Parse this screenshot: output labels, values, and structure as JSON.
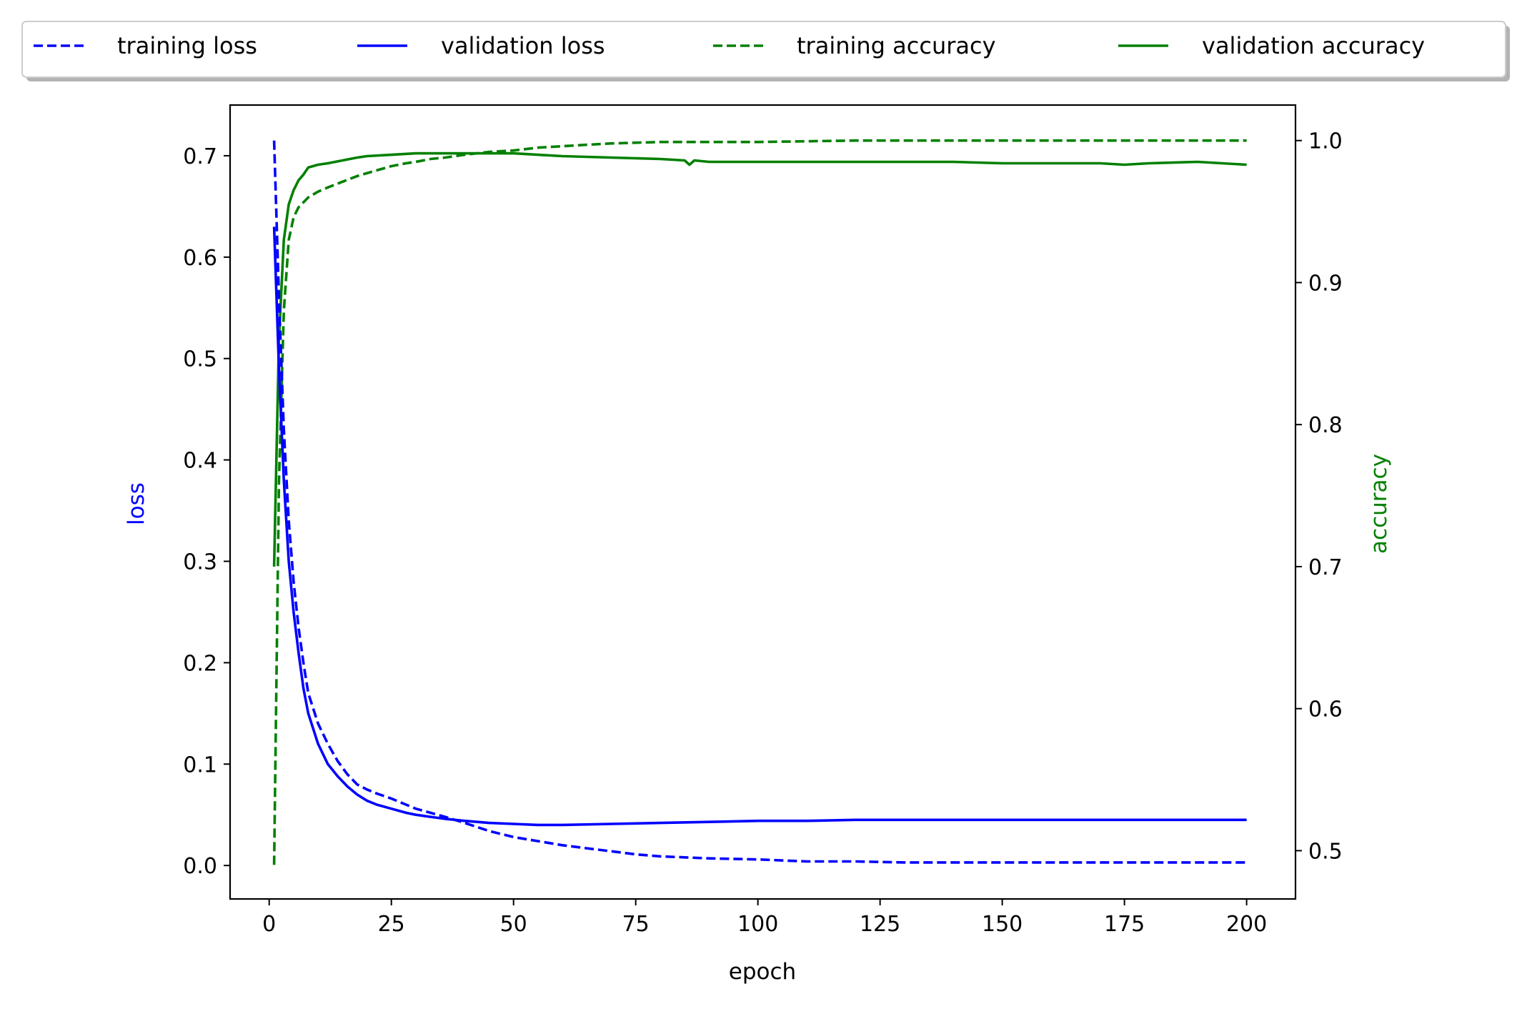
{
  "chart_data": {
    "type": "line",
    "xlabel": "epoch",
    "ylabel": "loss",
    "y2label": "accuracy",
    "xlim": [
      -8,
      210
    ],
    "ylim": [
      -0.033,
      0.75
    ],
    "y2lim": [
      0.466,
      1.025
    ],
    "xticks": [
      0,
      25,
      50,
      75,
      100,
      125,
      150,
      175,
      200
    ],
    "yticks": [
      0.0,
      0.1,
      0.2,
      0.3,
      0.4,
      0.5,
      0.6,
      0.7
    ],
    "y2ticks": [
      0.5,
      0.6,
      0.7,
      0.8,
      0.9,
      1.0
    ],
    "legend_position": "top, outside, single row",
    "ylabel_color": "#0000ff",
    "y2label_color": "#008000",
    "series": [
      {
        "name": "training loss",
        "axis": "left",
        "color": "#0000ff",
        "style": "dashed",
        "x": [
          1,
          2,
          3,
          4,
          5,
          6,
          7,
          8,
          10,
          12,
          14,
          16,
          18,
          20,
          22,
          25,
          28,
          30,
          33,
          36,
          40,
          45,
          50,
          55,
          60,
          65,
          70,
          75,
          80,
          85,
          90,
          100,
          110,
          120,
          130,
          140,
          150,
          160,
          170,
          180,
          190,
          200
        ],
        "y": [
          0.715,
          0.56,
          0.43,
          0.34,
          0.28,
          0.235,
          0.2,
          0.17,
          0.14,
          0.12,
          0.103,
          0.09,
          0.08,
          0.075,
          0.071,
          0.066,
          0.06,
          0.056,
          0.052,
          0.048,
          0.042,
          0.034,
          0.028,
          0.024,
          0.02,
          0.017,
          0.014,
          0.011,
          0.009,
          0.008,
          0.007,
          0.006,
          0.004,
          0.004,
          0.003,
          0.003,
          0.003,
          0.003,
          0.003,
          0.003,
          0.003,
          0.003
        ]
      },
      {
        "name": "validation loss",
        "axis": "left",
        "color": "#0000ff",
        "style": "solid",
        "x": [
          1,
          2,
          3,
          4,
          5,
          6,
          7,
          8,
          10,
          12,
          14,
          16,
          18,
          20,
          22,
          25,
          28,
          30,
          33,
          36,
          40,
          45,
          50,
          55,
          60,
          70,
          80,
          90,
          100,
          110,
          120,
          130,
          140,
          150,
          160,
          170,
          180,
          190,
          200
        ],
        "y": [
          0.63,
          0.49,
          0.38,
          0.3,
          0.25,
          0.21,
          0.175,
          0.15,
          0.12,
          0.1,
          0.088,
          0.078,
          0.07,
          0.064,
          0.06,
          0.056,
          0.052,
          0.05,
          0.048,
          0.046,
          0.044,
          0.042,
          0.041,
          0.04,
          0.04,
          0.041,
          0.042,
          0.043,
          0.044,
          0.044,
          0.045,
          0.045,
          0.045,
          0.045,
          0.045,
          0.045,
          0.045,
          0.045,
          0.045
        ]
      },
      {
        "name": "training accuracy",
        "axis": "right",
        "color": "#008000",
        "style": "dashed",
        "x": [
          1,
          2,
          3,
          4,
          5,
          6,
          8,
          10,
          12,
          15,
          18,
          20,
          22,
          25,
          28,
          30,
          33,
          36,
          40,
          45,
          50,
          55,
          60,
          65,
          70,
          80,
          90,
          100,
          120,
          140,
          160,
          180,
          200
        ],
        "y": [
          0.49,
          0.76,
          0.88,
          0.93,
          0.946,
          0.953,
          0.96,
          0.964,
          0.967,
          0.971,
          0.975,
          0.977,
          0.979,
          0.982,
          0.984,
          0.985,
          0.987,
          0.988,
          0.99,
          0.992,
          0.993,
          0.995,
          0.996,
          0.997,
          0.998,
          0.999,
          0.999,
          0.999,
          1.0,
          1.0,
          1.0,
          1.0,
          1.0
        ]
      },
      {
        "name": "validation accuracy",
        "axis": "right",
        "color": "#008000",
        "style": "solid",
        "x": [
          1,
          2,
          3,
          4,
          5,
          6,
          7,
          8,
          10,
          12,
          15,
          18,
          20,
          25,
          30,
          35,
          40,
          45,
          50,
          55,
          60,
          70,
          80,
          85,
          86,
          87,
          90,
          100,
          110,
          120,
          130,
          140,
          150,
          160,
          170,
          175,
          180,
          190,
          195,
          200
        ],
        "y": [
          0.7,
          0.86,
          0.93,
          0.955,
          0.965,
          0.972,
          0.976,
          0.981,
          0.983,
          0.984,
          0.986,
          0.988,
          0.989,
          0.99,
          0.991,
          0.991,
          0.991,
          0.991,
          0.991,
          0.99,
          0.989,
          0.988,
          0.987,
          0.986,
          0.983,
          0.986,
          0.985,
          0.985,
          0.985,
          0.985,
          0.985,
          0.985,
          0.984,
          0.984,
          0.984,
          0.983,
          0.984,
          0.985,
          0.984,
          0.983
        ]
      }
    ]
  }
}
